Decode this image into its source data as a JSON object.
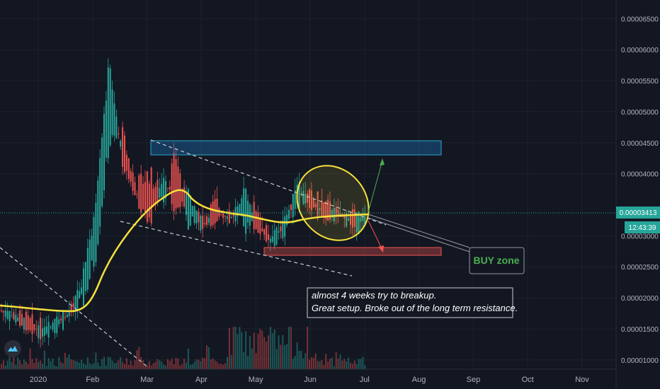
{
  "chart_data": {
    "type": "candlestick",
    "y_axis_ticks": [
      "0.00006500",
      "0.00006000",
      "0.00005500",
      "0.00005000",
      "0.00004500",
      "0.00004000",
      "0.00003000",
      "0.00002500",
      "0.00002000",
      "0.00001500",
      "0.00001000"
    ],
    "ylim": [
      8.5e-06,
      6.8e-05
    ],
    "x_axis_ticks": [
      "2020",
      "Feb",
      "Mar",
      "Apr",
      "May",
      "Jun",
      "Jul",
      "Aug",
      "Sep",
      "Oct",
      "Nov"
    ],
    "current_price": "0.00003413",
    "countdown": "12:43:39",
    "annotations": {
      "buy_zone": "BUY zone",
      "note_line1": "almost 4 weeks try to breakup.",
      "note_line2": "Great setup. Broke out of the long term resistance."
    },
    "price_path": [
      [
        1.8e-05,
        1.78e-05
      ],
      [
        1.7e-05,
        1.68e-05
      ],
      [
        1.6e-05,
        1.55e-05
      ],
      [
        1.5e-05,
        1.42e-05
      ],
      [
        1.55e-05,
        1.6e-05
      ],
      [
        1.7e-05,
        1.75e-05
      ],
      [
        1.9e-05,
        2.3e-05
      ],
      [
        2.7e-05,
        3.4e-05
      ],
      [
        4.5e-05,
        5.8e-05
      ],
      [
        4.6e-05,
        4.2e-05
      ],
      [
        3.8e-05,
        3.6e-05
      ],
      [
        4e-05,
        3.2e-05
      ],
      [
        3.6e-05,
        3.9e-05
      ],
      [
        4.3e-05,
        3.4e-05
      ],
      [
        3.1e-05,
        3.7e-05
      ],
      [
        3.3e-05,
        3.1e-05
      ],
      [
        3.5e-05,
        3.3e-05
      ],
      [
        3.4e-05,
        3.2e-05
      ],
      [
        3.1e-05,
        3.8e-05
      ],
      [
        3.5e-05,
        3e-05
      ],
      [
        2.8e-05,
        3e-05
      ],
      [
        3.1e-05,
        3.2e-05
      ],
      [
        3.6e-05,
        3.8e-05
      ],
      [
        3.6e-05,
        3.5e-05
      ],
      [
        3.5e-05,
        3.3e-05
      ],
      [
        3.3e-05,
        3.4e-05
      ],
      [
        3.3e-05,
        3.2e-05
      ],
      [
        3.1e-05,
        3.4e-05
      ]
    ]
  },
  "colors": {
    "up": "#26a69a",
    "down": "#ef5350",
    "ma": "#f7e13a",
    "grid": "#1e222d",
    "resistance_box": "#2196f3",
    "support_box": "#ef5350",
    "price_line": "#26a69a"
  }
}
